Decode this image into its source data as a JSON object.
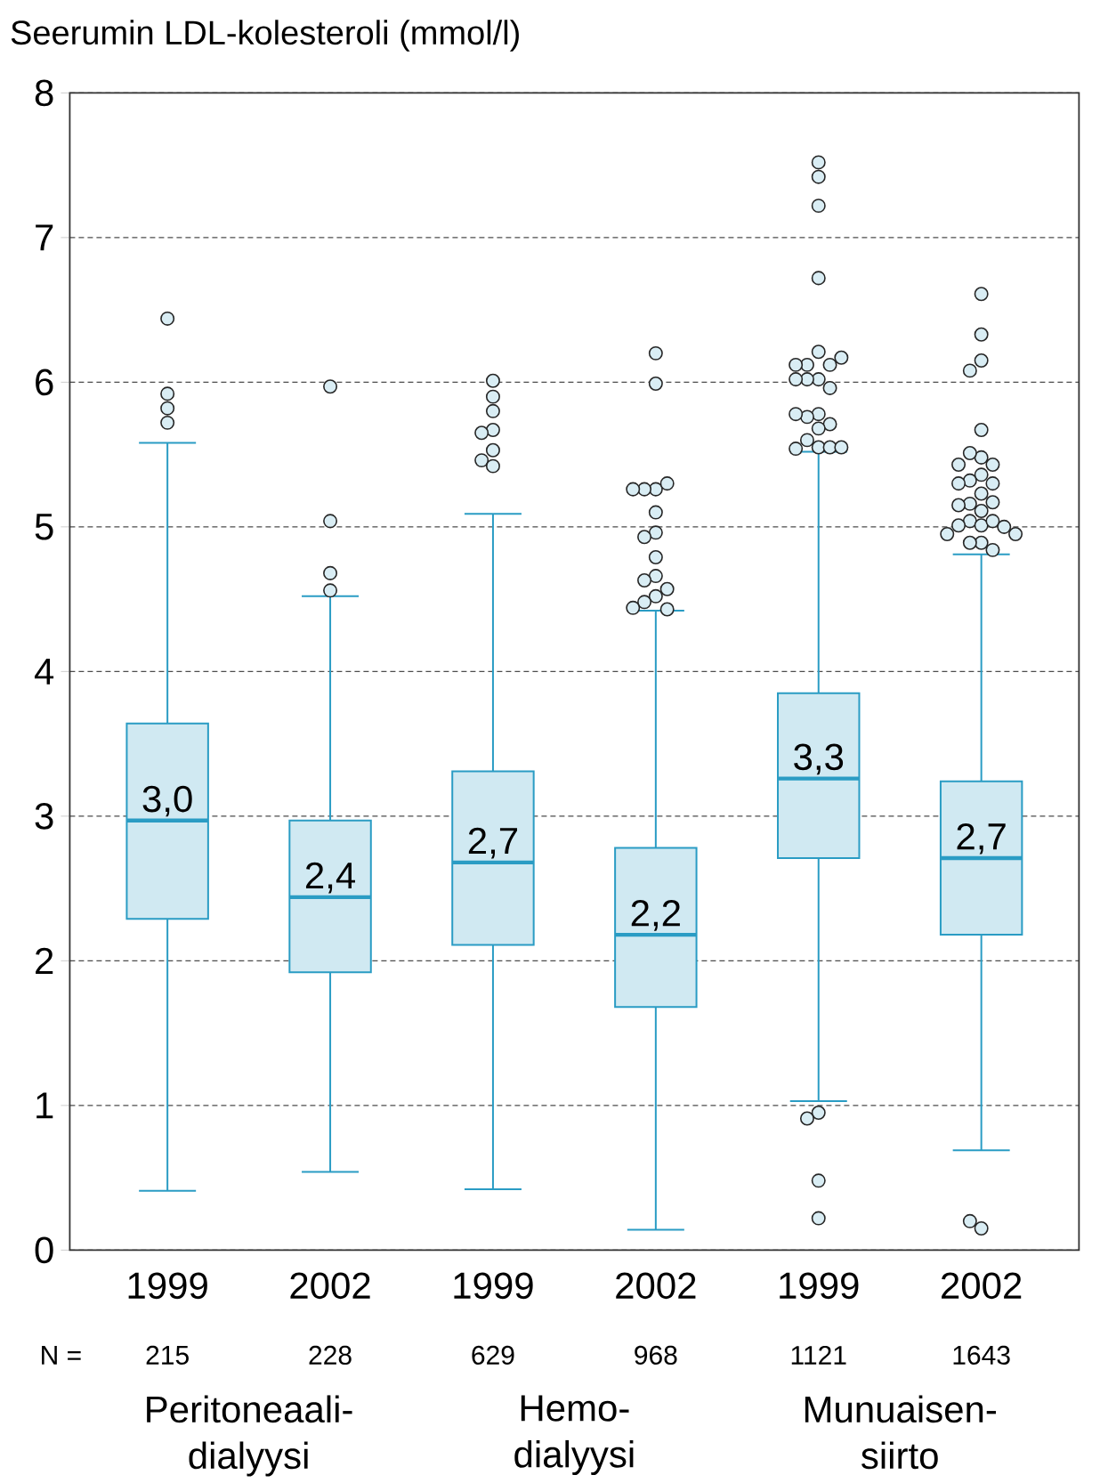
{
  "chart_data": {
    "type": "box",
    "title": "Seerumin LDL-kolesteroli (mmol/l)",
    "categories": [
      "1999",
      "2002",
      "1999",
      "2002",
      "1999",
      "2002"
    ],
    "series": [
      {
        "color": "#2a9cc4",
        "boxes": [
          {
            "low": 0.41,
            "q1": 2.29,
            "median": 2.97,
            "q3": 3.64,
            "high": 5.58,
            "outliers": [
              6.44,
              5.92,
              5.82,
              5.72
            ]
          },
          {
            "low": 0.54,
            "q1": 1.92,
            "median": 2.44,
            "q3": 2.97,
            "high": 4.52,
            "outliers": [
              5.97,
              5.04,
              4.68,
              4.56
            ]
          },
          {
            "low": 0.42,
            "q1": 2.11,
            "median": 2.68,
            "q3": 3.31,
            "high": 5.09,
            "outliers": [
              6.01,
              5.9,
              5.8,
              5.67,
              5.65,
              5.53,
              5.46,
              5.42
            ]
          },
          {
            "low": 0.14,
            "q1": 1.68,
            "median": 2.18,
            "q3": 2.78,
            "high": 4.42,
            "outliers": [
              6.2,
              5.99,
              5.26,
              5.26,
              5.3,
              5.26,
              5.1,
              4.96,
              4.93,
              4.79,
              4.66,
              4.63,
              4.57,
              4.52,
              4.48,
              4.43,
              4.44
            ]
          },
          {
            "low": 1.03,
            "q1": 2.71,
            "median": 3.26,
            "q3": 3.85,
            "high": 5.52,
            "outliers": [
              7.52,
              7.42,
              7.22,
              6.72,
              6.21,
              6.12,
              6.12,
              6.12,
              6.17,
              6.02,
              6.02,
              5.96,
              6.02,
              5.78,
              5.76,
              5.71,
              5.78,
              5.68,
              5.6,
              5.55,
              5.55,
              5.54,
              5.55,
              0.95,
              0.91,
              0.48,
              0.22
            ]
          },
          {
            "low": 0.69,
            "q1": 2.18,
            "median": 2.71,
            "q3": 3.24,
            "high": 4.81,
            "outliers": [
              6.61,
              6.33,
              6.15,
              6.08,
              5.67,
              5.48,
              5.51,
              5.43,
              5.43,
              5.36,
              5.32,
              5.3,
              5.3,
              5.23,
              5.16,
              5.17,
              5.15,
              5.11,
              5.04,
              5.01,
              5.04,
              5.01,
              5.0,
              4.95,
              4.95,
              4.89,
              4.89,
              4.84,
              0.15,
              0.2
            ]
          }
        ]
      }
    ],
    "value_labels": [
      "3,0",
      "2,4",
      "2,7",
      "2,2",
      "3,3",
      "2,7"
    ],
    "ylim": [
      0,
      8
    ],
    "yticks": [
      0,
      1,
      2,
      3,
      4,
      5,
      6,
      7,
      8
    ],
    "grid": "y",
    "marker": "circle",
    "annotations": [
      "N =",
      "215",
      "228",
      "629",
      "968",
      "1121",
      "1643",
      "Peritoneaali-dialyysi",
      "Hemo-dialyysi",
      "Munuaisen-siirto"
    ]
  }
}
